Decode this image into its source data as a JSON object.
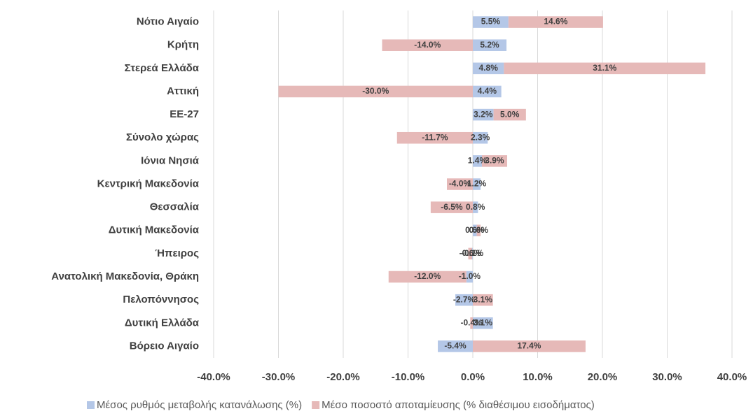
{
  "chart_data": {
    "type": "bar",
    "orientation": "horizontal",
    "stacked": true,
    "categories": [
      "Νότιο Αιγαίο",
      "Κρήτη",
      "Στερεά Ελλάδα",
      "Αττική",
      "ΕΕ-27",
      "Σύνολο χώρας",
      "Ιόνια Νησιά",
      "Κεντρική Μακεδονία",
      "Θεσσαλία",
      "Δυτική Μακεδονία",
      "Ήπειρος",
      "Ανατολική Μακεδονία, Θράκη",
      "Πελοπόννησος",
      "Δυτική Ελλάδα",
      "Βόρειο Αιγαίο"
    ],
    "series": [
      {
        "name": "Μέσος ρυθμός μεταβολής κατανάλωσης (%)",
        "color": "#b4c7e7",
        "values": [
          5.5,
          5.2,
          4.8,
          4.4,
          3.2,
          2.3,
          1.4,
          1.2,
          0.8,
          0.6,
          -0.1,
          -1.0,
          -2.7,
          3.1,
          -5.4
        ],
        "value_labels": [
          "5.5%",
          "5.2%",
          "4.8%",
          "4.4%",
          "3.2%",
          "2.3%",
          "1.4%",
          "1.2%",
          "0.8%",
          "0.6%",
          "-0.1%",
          "-1.0%",
          "-2.7%",
          "3.1%",
          "-5.4%"
        ]
      },
      {
        "name": "Μέσο ποσοστό αποταμίευσης (% διαθέσιμου εισοδήματος)",
        "color": "#e6b9b8",
        "values": [
          14.6,
          -14.0,
          31.1,
          -30.0,
          5.0,
          -11.7,
          3.9,
          -4.0,
          -6.5,
          0.6,
          -0.6,
          -12.0,
          3.1,
          -0.4,
          17.4
        ],
        "value_labels": [
          "14.6%",
          "-14.0%",
          "31.1%",
          "-30.0%",
          "5.0%",
          "-11.7%",
          "3.9%",
          "-4.0%",
          "-6.5%",
          "0.6%",
          "-0.6%",
          "-12.0%",
          "3.1%",
          "-0.4%",
          "17.4%"
        ]
      }
    ],
    "xlim": [
      -40,
      40
    ],
    "xticks": [
      {
        "value": -40,
        "label": "-40.0%"
      },
      {
        "value": -30,
        "label": "-30.0%"
      },
      {
        "value": -20,
        "label": "-20.0%"
      },
      {
        "value": -10,
        "label": "-10.0%"
      },
      {
        "value": 0,
        "label": "0.0%"
      },
      {
        "value": 10,
        "label": "10.0%"
      },
      {
        "value": 20,
        "label": "20.0%"
      },
      {
        "value": 30,
        "label": "30.0%"
      },
      {
        "value": 40,
        "label": "40.0%"
      }
    ],
    "grid": true,
    "legend": "bottom"
  }
}
